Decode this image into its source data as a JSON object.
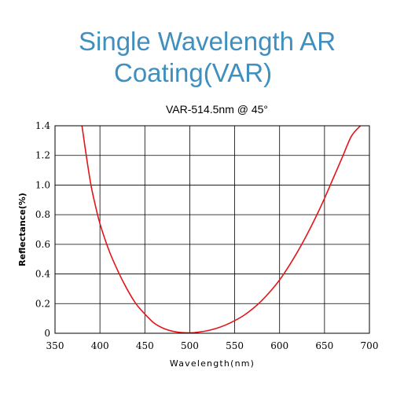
{
  "header": {
    "title_line_1": "Single Wavelength AR",
    "title_line_2": "Coating(VAR)"
  },
  "chart_data": {
    "type": "line",
    "title": "VAR-514.5nm @ 45°",
    "xlabel": "Wavelength(nm)",
    "ylabel": "Reflectance(%)",
    "xlim": [
      350,
      700
    ],
    "ylim": [
      0,
      1.4
    ],
    "x_ticks": [
      350,
      400,
      450,
      500,
      550,
      600,
      650,
      700
    ],
    "x_tick_labels": [
      "350",
      "400",
      "450",
      "500",
      "550",
      "600",
      "650",
      "700"
    ],
    "y_ticks": [
      0,
      0.2,
      0.4,
      0.6,
      0.8,
      1.0,
      1.2,
      1.4
    ],
    "y_tick_labels": [
      "0",
      "0.2",
      "0.4",
      "0.6",
      "0.8",
      "1.0",
      "1.2",
      "1.4"
    ],
    "grid": true,
    "legend": "none",
    "series": [
      {
        "color": "#e3151a",
        "x": [
          380,
          385,
          390,
          395,
          400,
          410,
          420,
          430,
          440,
          450,
          460,
          470,
          480,
          490,
          500,
          505,
          510,
          520,
          530,
          540,
          550,
          560,
          570,
          580,
          590,
          600,
          610,
          620,
          630,
          640,
          650,
          660,
          670,
          680,
          690
        ],
        "y": [
          1.4,
          1.19,
          1.0,
          0.86,
          0.74,
          0.56,
          0.42,
          0.3,
          0.2,
          0.13,
          0.07,
          0.035,
          0.015,
          0.005,
          0.003,
          0.004,
          0.008,
          0.018,
          0.034,
          0.056,
          0.085,
          0.12,
          0.165,
          0.22,
          0.285,
          0.36,
          0.45,
          0.55,
          0.66,
          0.78,
          0.91,
          1.05,
          1.19,
          1.33,
          1.4
        ]
      }
    ]
  }
}
